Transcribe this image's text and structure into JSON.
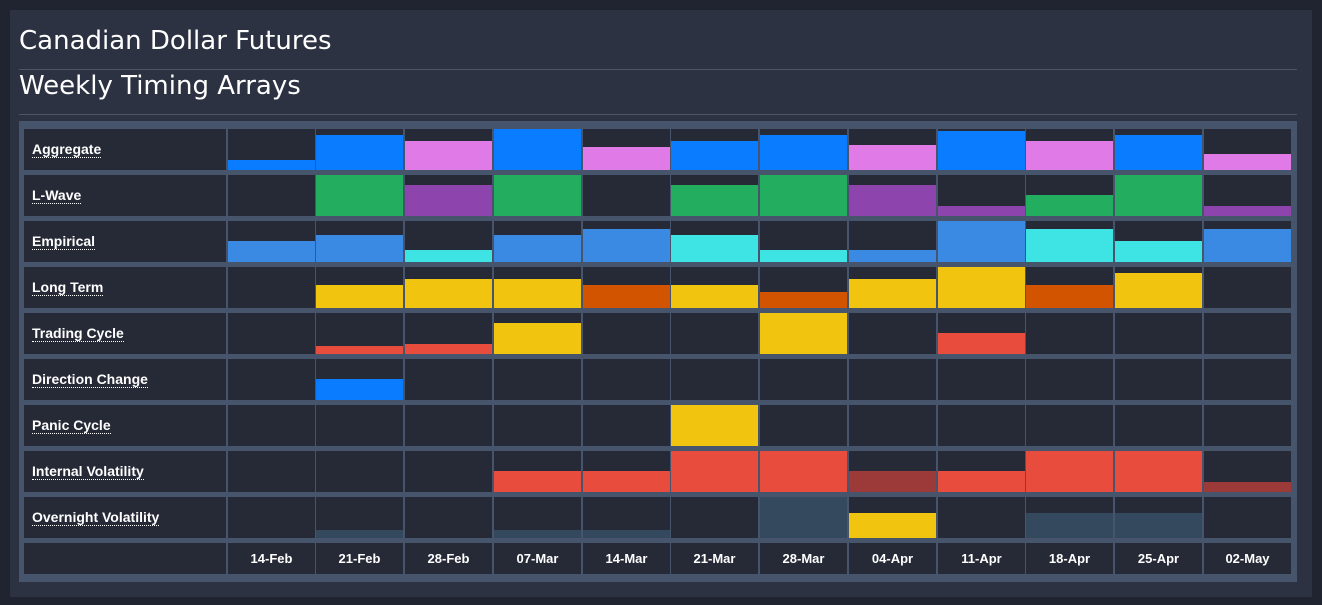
{
  "page": {
    "title": "Canadian Dollar Futures",
    "subtitle": "Weekly Timing Arrays"
  },
  "chart_data": {
    "type": "heatmap",
    "x": [
      "14-Feb",
      "21-Feb",
      "28-Feb",
      "07-Mar",
      "14-Mar",
      "21-Mar",
      "28-Mar",
      "04-Apr",
      "11-Apr",
      "18-Apr",
      "25-Apr",
      "02-May"
    ],
    "value_scale": "fraction of cell height filled (0–1)",
    "colors": {
      "blue": "#0a7cff",
      "pink": "#e07ae6",
      "green": "#22ae5e",
      "purple": "#8e44ad",
      "steel": "#3a89e2",
      "cyan": "#3ee4e4",
      "yellow": "#f1c40f",
      "orange": "#d35400",
      "red": "#e74c3c",
      "darkred": "#9b3a38",
      "slate": "#34495e"
    },
    "series": [
      {
        "name": "Aggregate",
        "values": [
          0.25,
          0.85,
          0.7,
          1.0,
          0.55,
          0.7,
          0.85,
          0.6,
          0.95,
          0.7,
          0.85,
          0.4
        ],
        "colors": [
          "blue",
          "blue",
          "pink",
          "blue",
          "pink",
          "blue",
          "blue",
          "pink",
          "blue",
          "pink",
          "blue",
          "pink"
        ]
      },
      {
        "name": "L-Wave",
        "values": [
          0,
          1.0,
          0.75,
          1.0,
          0,
          0.75,
          1.0,
          0.75,
          0.25,
          0.5,
          1.0,
          0.25
        ],
        "colors": [
          "green",
          "green",
          "purple",
          "green",
          "green",
          "green",
          "green",
          "purple",
          "purple",
          "green",
          "green",
          "purple"
        ]
      },
      {
        "name": "Empirical",
        "values": [
          0.5,
          0.65,
          0.3,
          0.65,
          0.8,
          0.65,
          0.3,
          0.3,
          1.0,
          0.8,
          0.5,
          0.8
        ],
        "colors": [
          "steel",
          "steel",
          "cyan",
          "steel",
          "steel",
          "cyan",
          "cyan",
          "steel",
          "steel",
          "cyan",
          "cyan",
          "steel"
        ]
      },
      {
        "name": "Long Term",
        "values": [
          0,
          0.55,
          0.7,
          0.7,
          0.55,
          0.55,
          0.4,
          0.7,
          1.0,
          0.55,
          0.85,
          0
        ],
        "colors": [
          "yellow",
          "yellow",
          "yellow",
          "yellow",
          "orange",
          "yellow",
          "orange",
          "yellow",
          "yellow",
          "orange",
          "yellow",
          "yellow"
        ]
      },
      {
        "name": "Trading Cycle",
        "values": [
          0,
          0.2,
          0.25,
          0.75,
          0,
          0,
          1.0,
          0,
          0.5,
          0,
          0,
          0
        ],
        "colors": [
          "red",
          "red",
          "red",
          "yellow",
          "red",
          "red",
          "yellow",
          "red",
          "red",
          "red",
          "red",
          "red"
        ]
      },
      {
        "name": "Direction Change",
        "values": [
          0,
          0.5,
          0,
          0,
          0,
          0,
          0,
          0,
          0,
          0,
          0,
          0
        ],
        "colors": [
          "blue",
          "blue",
          "blue",
          "blue",
          "blue",
          "blue",
          "blue",
          "blue",
          "blue",
          "blue",
          "blue",
          "blue"
        ]
      },
      {
        "name": "Panic Cycle",
        "values": [
          0,
          0,
          0,
          0,
          0,
          1.0,
          0,
          0,
          0,
          0,
          0,
          0
        ],
        "colors": [
          "yellow",
          "yellow",
          "yellow",
          "yellow",
          "yellow",
          "yellow",
          "yellow",
          "yellow",
          "yellow",
          "yellow",
          "yellow",
          "yellow"
        ]
      },
      {
        "name": "Internal Volatility",
        "values": [
          0,
          0,
          0,
          0.5,
          0.5,
          1.0,
          1.0,
          0.5,
          0.5,
          1.0,
          1.0,
          0.25
        ],
        "colors": [
          "red",
          "red",
          "red",
          "red",
          "red",
          "red",
          "red",
          "darkred",
          "red",
          "red",
          "red",
          "darkred"
        ]
      },
      {
        "name": "Overnight Volatility",
        "values": [
          0,
          0.2,
          0,
          0.2,
          0.2,
          0,
          1.0,
          0.6,
          0,
          0.6,
          0.6,
          0
        ],
        "colors": [
          "slate",
          "slate",
          "slate",
          "slate",
          "slate",
          "slate",
          "slate",
          "yellow",
          "slate",
          "slate",
          "slate",
          "slate"
        ]
      }
    ]
  }
}
